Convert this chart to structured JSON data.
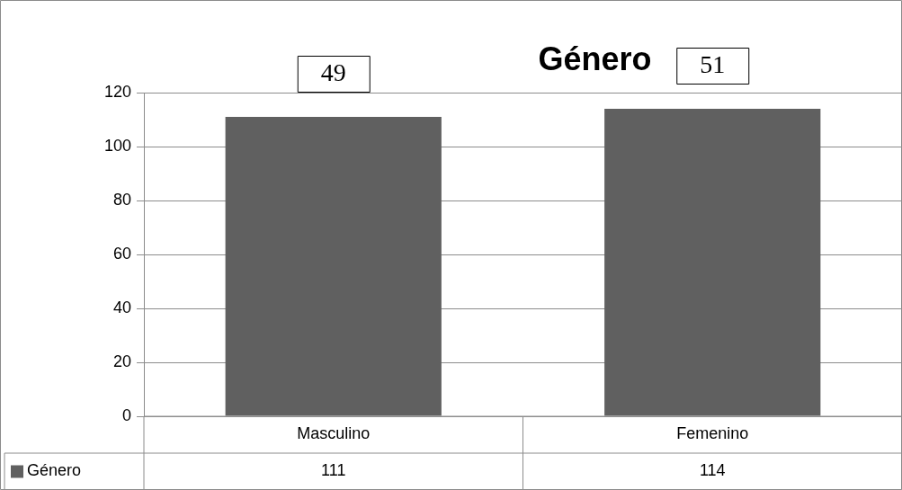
{
  "chart_data": {
    "type": "bar",
    "title": "Género",
    "categories": [
      "Masculino",
      "Femenino"
    ],
    "series": [
      {
        "name": "Género",
        "color": "#606060",
        "values": [
          111,
          114
        ]
      }
    ],
    "ylim": [
      0,
      120
    ],
    "yticks": [
      0,
      20,
      40,
      60,
      80,
      100,
      120
    ],
    "grid": "y",
    "legend": "bottom",
    "data_labels": true,
    "annotations": [
      {
        "text": "49",
        "x": "Masculino",
        "y": 111
      },
      {
        "text": "51",
        "x": "Femenino",
        "y": 114
      }
    ]
  }
}
